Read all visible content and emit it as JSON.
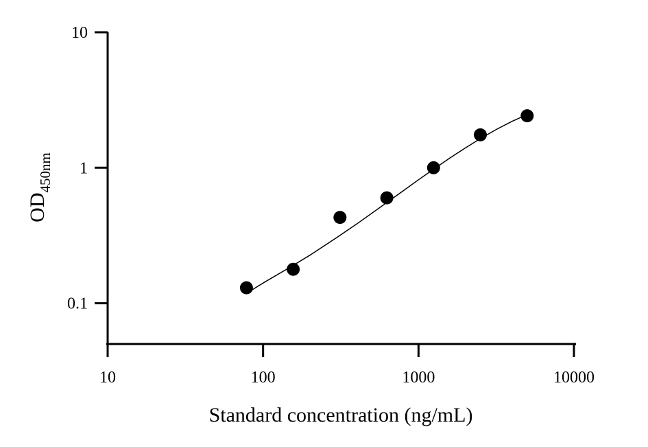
{
  "chart_data": {
    "type": "scatter",
    "title": "",
    "xlabel": "Standard concentration (ng/mL)",
    "ylabel_main": "OD",
    "ylabel_sub": "450nm",
    "xscale": "log",
    "yscale": "log",
    "xlim": [
      10,
      10000
    ],
    "ylim": [
      0.05,
      10
    ],
    "x_ticks": [
      10,
      100,
      1000,
      10000
    ],
    "x_tick_labels": [
      "10",
      "100",
      "1000",
      "10000"
    ],
    "y_ticks": [
      0.1,
      1,
      10
    ],
    "y_tick_labels": [
      "0.1",
      "1",
      "10"
    ],
    "grid": false,
    "series": [
      {
        "x": [
          78.125,
          156.25,
          312.5,
          625,
          1250,
          2500,
          5000
        ],
        "y": [
          0.13,
          0.178,
          0.43,
          0.6,
          1.0,
          1.75,
          2.42
        ]
      }
    ],
    "fit_curve": {
      "x": [
        78,
        100,
        150,
        200,
        300,
        400,
        600,
        800,
        1000,
        1250,
        1600,
        2000,
        2500,
        3200,
        4000,
        5000
      ],
      "y": [
        0.118,
        0.141,
        0.185,
        0.226,
        0.307,
        0.384,
        0.535,
        0.678,
        0.815,
        0.975,
        1.185,
        1.4,
        1.64,
        1.93,
        2.2,
        2.47
      ]
    }
  }
}
